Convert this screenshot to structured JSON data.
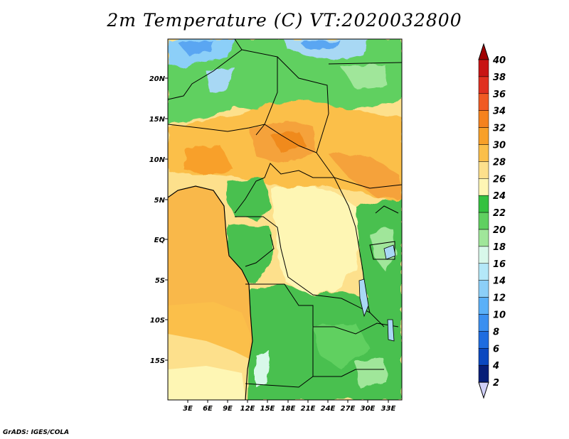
{
  "title": "2m Temperature (C) VT:2020032800",
  "credit": "GrADS: IGES/COLA",
  "lat_labels": [
    "20N",
    "15N",
    "10N",
    "5N",
    "EQ",
    "5S",
    "10S",
    "15S"
  ],
  "lon_labels": [
    "3E",
    "6E",
    "9E",
    "12E",
    "15E",
    "18E",
    "21E",
    "24E",
    "27E",
    "30E",
    "33E"
  ],
  "colorbar": {
    "labels": [
      "40",
      "38",
      "36",
      "34",
      "32",
      "30",
      "28",
      "26",
      "24",
      "22",
      "20",
      "18",
      "16",
      "14",
      "12",
      "10",
      "8",
      "6",
      "4",
      "2"
    ],
    "colors": [
      "#a00000",
      "#c81414",
      "#e03020",
      "#f05a23",
      "#f5821e",
      "#f8a029",
      "#fbbf4a",
      "#fde08c",
      "#fef6b4",
      "#34c140",
      "#60d060",
      "#a0e69a",
      "#d8f8ea",
      "#b4e8f8",
      "#8ccff8",
      "#5ab0f8",
      "#3a8ff0",
      "#1e6ce0",
      "#0a48c0",
      "#061e78",
      "#d0d0f8"
    ]
  },
  "colors": {
    "ocean_warm": "#f9b84a",
    "ocean_cool": "#fde08c",
    "hot": "#f5a23a",
    "very_hot": "#f08a1e",
    "warm": "#fde08c",
    "mild": "#fef6b4",
    "green": "#48c050",
    "light_green": "#8ad888",
    "cool_blue": "#a8d8f4",
    "cold_blue": "#5aa6f2"
  }
}
